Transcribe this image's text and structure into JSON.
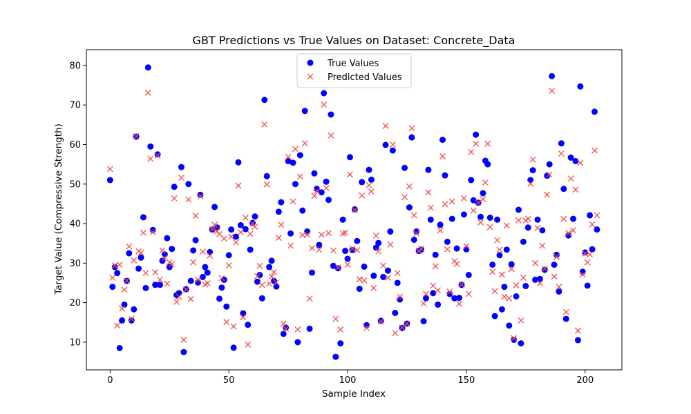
{
  "chart_data": {
    "type": "scatter",
    "title": "GBT Predictions vs True Values on Dataset: Concrete_Data",
    "xlabel": "Sample Index",
    "ylabel": "Target Value (Compressive Strength)",
    "xlim": [
      -10,
      215.5
    ],
    "ylim": [
      3,
      84
    ],
    "xticks": [
      0,
      50,
      100,
      150,
      200
    ],
    "yticks": [
      10,
      20,
      30,
      40,
      50,
      60,
      70,
      80
    ],
    "legend_placement": "top-center",
    "series": [
      {
        "name": "True Values",
        "marker": "circle",
        "color": "#0000ff",
        "y": [
          51,
          24,
          29,
          27.5,
          8.5,
          15.5,
          19.5,
          25.5,
          32.5,
          15.5,
          18.3,
          62,
          28.6,
          31.4,
          41.6,
          23.7,
          79.5,
          59.5,
          38.4,
          24.5,
          57.5,
          24.5,
          30.6,
          32.2,
          36.3,
          29,
          33.6,
          49.3,
          21.9,
          22.4,
          54.3,
          7.5,
          23.4,
          50,
          25.5,
          33.2,
          35.8,
          25.1,
          47.3,
          26.5,
          29,
          27.6,
          32.8,
          38.5,
          44.2,
          39,
          21,
          23.8,
          25.8,
          19,
          32,
          38.5,
          8.6,
          36.7,
          55.5,
          39.6,
          17.3,
          38.6,
          14.4,
          33.4,
          40.2,
          41.8,
          25.3,
          27,
          21.1,
          71.3,
          52,
          29,
          30.6,
          25.5,
          24.1,
          43,
          45.4,
          12.1,
          13.7,
          55.8,
          37.5,
          55.4,
          50,
          10,
          57.3,
          43.3,
          68.5,
          38,
          13.4,
          27.6,
          52.7,
          48.8,
          34.6,
          47.9,
          73,
          50.6,
          46,
          67.6,
          29.3,
          6.3,
          28.7,
          9.7,
          41,
          33.1,
          31.1,
          56.8,
          33.3,
          43.6,
          35.6,
          23.5,
          50.5,
          29.1,
          14.3,
          53.6,
          51.1,
          26.8,
          33.9,
          35.1,
          15.4,
          26.5,
          59.9,
          28.1,
          38,
          58.5,
          17.4,
          25,
          20.8,
          13.6,
          54.1,
          14.7,
          44.1,
          61.8,
          35.9,
          38,
          33.1,
          33.4,
          15.3,
          21.1,
          53.6,
          41,
          22.4,
          32.1,
          19.5,
          39.7,
          61.2,
          52.2,
          35.4,
          22.2,
          41.2,
          21.1,
          33.7,
          21.2,
          24.5,
          42.3,
          33.5,
          27,
          51,
          45.9,
          62.5,
          45.3,
          41.7,
          47.7,
          55.9,
          55,
          41.5,
          29.6,
          16.6,
          41,
          32,
          18.3,
          24,
          33.4,
          14.2,
          29.7,
          10.6,
          21.6,
          43.5,
          9.7,
          35.4,
          24.2,
          39,
          51,
          53.5,
          25.8,
          41,
          26,
          38.3,
          28.3,
          52.1,
          55,
          77.3,
          29.6,
          32.1,
          22.8,
          60.3,
          48.8,
          15.9,
          37,
          56.7,
          41.2,
          55.8,
          10.5,
          74.7,
          27.8,
          32.7,
          24.3,
          42.1,
          33.5,
          68.3,
          38.5
        ]
      },
      {
        "name": "Predicted Values",
        "marker": "x",
        "color": "#f05050",
        "y": [
          53.8,
          26.3,
          29.4,
          14.2,
          29.6,
          18.5,
          23.3,
          25.6,
          34.2,
          15.9,
          30.7,
          62.1,
          33,
          32.6,
          37.7,
          27.5,
          73.1,
          56.4,
          37.8,
          27.7,
          57.2,
          25.8,
          33.2,
          31.3,
          24.8,
          30.2,
          29.8,
          46.4,
          20.2,
          21.5,
          51.6,
          10.6,
          23.3,
          46.1,
          20.9,
          30.2,
          42,
          25.8,
          46.9,
          32.9,
          24.6,
          24.9,
          31.9,
          38.6,
          39.7,
          38.1,
          37.3,
          26.2,
          36.2,
          15.1,
          29.4,
          36.7,
          14,
          35.3,
          49.6,
          37.8,
          16.3,
          41.5,
          9.4,
          37.4,
          40,
          39.2,
          26.7,
          29.3,
          24.5,
          65.1,
          49.9,
          24.8,
          26.6,
          27.7,
          25.1,
          36.4,
          39.7,
          14.7,
          13.4,
          56.9,
          34.4,
          45.6,
          58.9,
          13.2,
          51.9,
          37.1,
          60.3,
          37.2,
          21,
          33.8,
          47,
          48.2,
          33.4,
          37.2,
          70.1,
          49,
          37.6,
          62.3,
          33.2,
          15.9,
          28.9,
          13.2,
          37.5,
          37.7,
          29.6,
          52.4,
          33.7,
          43.4,
          33.3,
          25.9,
          47.1,
          25.6,
          13.6,
          49.7,
          48.1,
          23.7,
          37,
          33,
          15.2,
          29.4,
          64.7,
          26.3,
          34.7,
          60,
          12.3,
          27.5,
          21.5,
          13.7,
          46.7,
          14.7,
          49.4,
          64.1,
          42.1,
          37.5,
          33.1,
          33.6,
          19.8,
          22.2,
          47.9,
          44,
          24.3,
          29.2,
          23.1,
          38.3,
          57,
          44.9,
          33.5,
          22.8,
          45.6,
          30.5,
          29.8,
          19.7,
          24.6,
          46.4,
          34.3,
          22.2,
          58.1,
          43.3,
          60.2,
          45.3,
          40.3,
          46.2,
          50.4,
          60.2,
          39.1,
          27.8,
          22.9,
          35.8,
          33.4,
          27.1,
          21.5,
          39.5,
          21.1,
          28.5,
          11,
          24.4,
          40.8,
          15.5,
          26.3,
          40.8,
          41.2,
          50.1,
          56.2,
          30,
          38.9,
          24.9,
          34.4,
          28.6,
          47.3,
          52.4,
          73.6,
          26.6,
          31.6,
          24,
          57.7,
          41.2,
          17.6,
          37.6,
          51.4,
          38.3,
          48.6,
          12.9,
          55.4,
          27.1,
          32.4,
          30.2,
          32.2,
          39.8,
          58.5,
          42.1
        ]
      }
    ]
  }
}
